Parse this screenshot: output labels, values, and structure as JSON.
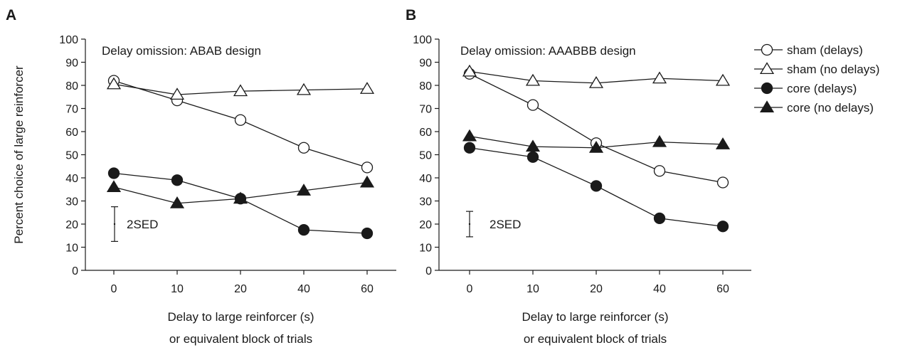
{
  "legend": [
    {
      "label": "sham (delays)",
      "marker": "circle",
      "filled": false
    },
    {
      "label": "sham (no delays)",
      "marker": "triangle",
      "filled": false
    },
    {
      "label": "core (delays)",
      "marker": "circle",
      "filled": true
    },
    {
      "label": "core (no delays)",
      "marker": "triangle",
      "filled": true
    }
  ],
  "colors": {
    "ink": "#1a1a1a",
    "open_fill": "#ffffff"
  },
  "chart_data": [
    {
      "panel": "A",
      "type": "line",
      "title": "Delay omission: ABAB design",
      "ylabel": "Percent choice of large reinforcer",
      "xlabel_lines": [
        "Delay to large reinforcer (s)",
        "or equivalent block of trials"
      ],
      "categories": [
        "0",
        "10",
        "20",
        "40",
        "60"
      ],
      "ylim": [
        0,
        100
      ],
      "yticks": [
        0,
        10,
        20,
        30,
        40,
        50,
        60,
        70,
        80,
        90,
        100
      ],
      "grid": false,
      "series": [
        {
          "name": "sham (delays)",
          "values": [
            82,
            73.5,
            65,
            53,
            44.5
          ]
        },
        {
          "name": "sham (no delays)",
          "values": [
            80.5,
            76,
            77.5,
            78,
            78.5
          ]
        },
        {
          "name": "core (delays)",
          "values": [
            42,
            39,
            31,
            17.5,
            16
          ]
        },
        {
          "name": "core (no delays)",
          "values": [
            36,
            29,
            31,
            34.5,
            38
          ]
        }
      ],
      "error_bar": {
        "label": "2SED",
        "center": 20,
        "low": 12.5,
        "high": 27.5
      }
    },
    {
      "panel": "B",
      "type": "line",
      "title": "Delay omission: AAABBB design",
      "ylabel": "",
      "xlabel_lines": [
        "Delay to large reinforcer (s)",
        "or equivalent block of trials"
      ],
      "categories": [
        "0",
        "10",
        "20",
        "40",
        "60"
      ],
      "ylim": [
        0,
        100
      ],
      "yticks": [
        0,
        10,
        20,
        30,
        40,
        50,
        60,
        70,
        80,
        90,
        100
      ],
      "grid": false,
      "series": [
        {
          "name": "sham (delays)",
          "values": [
            85,
            71.5,
            55,
            43,
            38
          ]
        },
        {
          "name": "sham (no delays)",
          "values": [
            86,
            82,
            81,
            83,
            82
          ]
        },
        {
          "name": "core (delays)",
          "values": [
            53,
            49,
            36.5,
            22.5,
            19
          ]
        },
        {
          "name": "core (no delays)",
          "values": [
            58,
            53.5,
            53,
            55.5,
            54.5
          ]
        }
      ],
      "error_bar": {
        "label": "2SED",
        "center": 20,
        "low": 14.5,
        "high": 25.5
      }
    }
  ]
}
